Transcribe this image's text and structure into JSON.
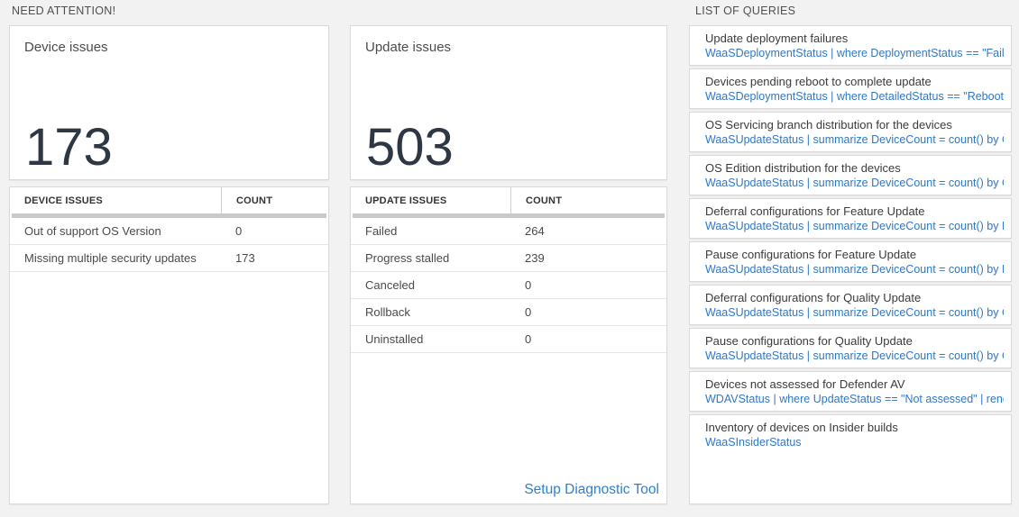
{
  "sections": {
    "need_attention": {
      "label": "NEED ATTENTION!"
    },
    "list_of_queries": {
      "label": "LIST OF QUERIES"
    }
  },
  "device_card": {
    "title": "Device issues",
    "count": "173"
  },
  "update_card": {
    "title": "Update issues",
    "count": "503"
  },
  "device_table": {
    "headers": {
      "issue": "DEVICE ISSUES",
      "count": "COUNT"
    },
    "rows": [
      {
        "label": "Out of support OS Version",
        "count": "0"
      },
      {
        "label": "Missing multiple security updates",
        "count": "173"
      }
    ]
  },
  "update_table": {
    "headers": {
      "issue": "UPDATE ISSUES",
      "count": "COUNT"
    },
    "rows": [
      {
        "label": "Failed",
        "count": "264"
      },
      {
        "label": "Progress stalled",
        "count": "239"
      },
      {
        "label": "Canceled",
        "count": "0"
      },
      {
        "label": "Rollback",
        "count": "0"
      },
      {
        "label": "Uninstalled",
        "count": "0"
      }
    ],
    "footer_link": "Setup Diagnostic Tool"
  },
  "queries": [
    {
      "title": "Update deployment failures",
      "query": "WaaSDeploymentStatus | where DeploymentStatus == \"Failed\" |..."
    },
    {
      "title": "Devices pending reboot to complete update",
      "query": "WaaSDeploymentStatus | where DetailedStatus == \"Reboot pend..."
    },
    {
      "title": "OS Servicing branch distribution for the devices",
      "query": "WaaSUpdateStatus | summarize DeviceCount = count() by OSSer..."
    },
    {
      "title": "OS Edition distribution for the devices",
      "query": "WaaSUpdateStatus | summarize DeviceCount = count() by OSEdit..."
    },
    {
      "title": "Deferral configurations for Feature Update",
      "query": "WaaSUpdateStatus | summarize DeviceCount = count() by Featur..."
    },
    {
      "title": "Pause configurations for Feature Update",
      "query": "WaaSUpdateStatus | summarize DeviceCount = count() by Featur..."
    },
    {
      "title": "Deferral configurations for Quality Update",
      "query": "WaaSUpdateStatus | summarize DeviceCount = count() by Qualit..."
    },
    {
      "title": "Pause configurations for Quality Update",
      "query": "WaaSUpdateStatus | summarize DeviceCount = count() by Qualit..."
    },
    {
      "title": "Devices not assessed for Defender AV",
      "query": "WDAVStatus | where UpdateStatus == \"Not assessed\" | render ta..."
    },
    {
      "title": "Inventory of devices on Insider builds",
      "query": "WaaSInsiderStatus"
    }
  ],
  "colors": {
    "page_background": "#f2f2f2",
    "card_border": "#d9d9d9",
    "big_number": "#2e3742",
    "query_link_blue": "#3277c3",
    "footer_link_blue": "#2e80d0",
    "grid_bar_gray": "#c9c9c9"
  }
}
